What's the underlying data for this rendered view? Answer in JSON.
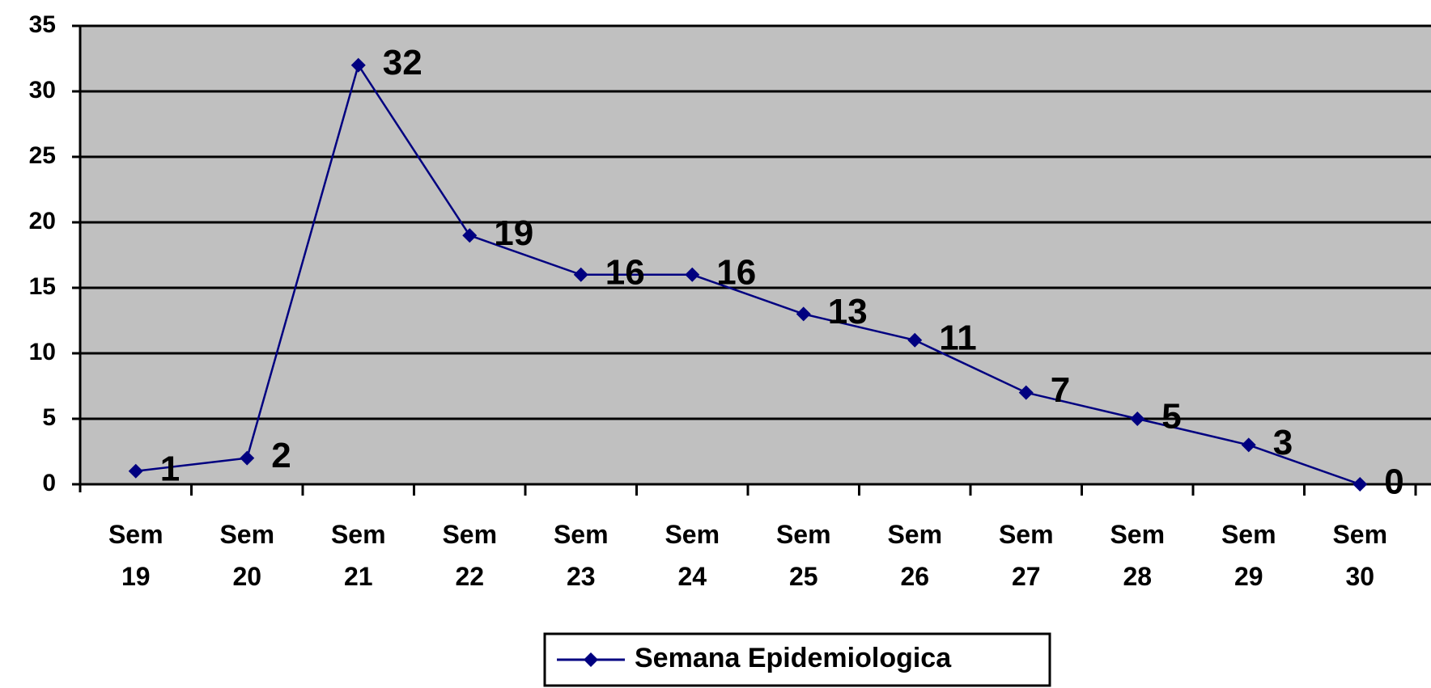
{
  "chart_data": {
    "type": "line",
    "categories": [
      "Sem 19",
      "Sem 20",
      "Sem 21",
      "Sem 22",
      "Sem 23",
      "Sem 24",
      "Sem 25",
      "Sem 26",
      "Sem 27",
      "Sem 28",
      "Sem 29",
      "Sem 30"
    ],
    "series": [
      {
        "name": "Semana Epidemiologica",
        "color": "#000080",
        "values": [
          1,
          2,
          32,
          19,
          16,
          16,
          13,
          11,
          7,
          5,
          3,
          0
        ]
      }
    ],
    "ylim": [
      0,
      35
    ],
    "yticks": [
      0,
      5,
      10,
      15,
      20,
      25,
      30,
      35
    ],
    "grid": true,
    "legend": "bottom"
  }
}
